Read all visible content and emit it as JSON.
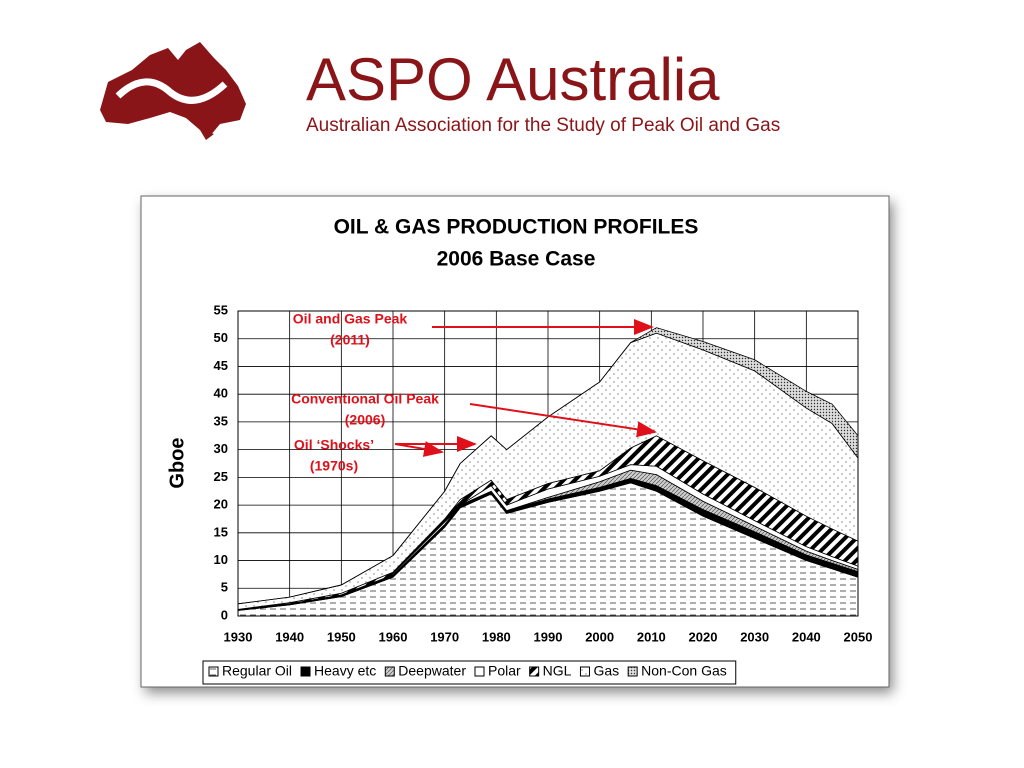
{
  "header": {
    "title": "ASPO Australia",
    "subtitle": "Australian Association for the Study of Peak Oil and Gas"
  },
  "chart_data": {
    "type": "stacked-area",
    "title": "OIL & GAS PRODUCTION PROFILES",
    "subtitle": "2006 Base Case",
    "y_label": "Gboe",
    "x": [
      1930,
      1940,
      1950,
      1960,
      1970,
      1973,
      1979,
      1982,
      1990,
      2000,
      2006,
      2011,
      2020,
      2030,
      2040,
      2045,
      2050
    ],
    "series": [
      {
        "name": "Regular Oil",
        "color": "#ffffff",
        "values": [
          1,
          2,
          3.5,
          7,
          16,
          19.5,
          22,
          18.5,
          20.5,
          22.5,
          24,
          22.5,
          18,
          14,
          10,
          8.5,
          7
        ]
      },
      {
        "name": "Heavy etc",
        "color": "#000000",
        "values": [
          0.1,
          0.2,
          0.3,
          0.4,
          0.5,
          0.5,
          0.5,
          0.5,
          0.6,
          0.7,
          0.8,
          1,
          1.2,
          1.2,
          1,
          1,
          1
        ]
      },
      {
        "name": "Deepwater",
        "color": "#bbbbbb",
        "values": [
          0,
          0,
          0,
          0,
          0,
          0,
          0,
          0,
          0.3,
          1,
          1.5,
          2,
          1.5,
          1,
          0.7,
          0.5,
          0.4
        ]
      },
      {
        "name": "Polar",
        "color": "#ffffff",
        "values": [
          0,
          0,
          0,
          0,
          0,
          0,
          1,
          1,
          1.5,
          1,
          1,
          1.5,
          1.3,
          1,
          0.8,
          0.7,
          0.6
        ]
      },
      {
        "name": "NGL",
        "color": "#000000",
        "values": [
          0.1,
          0.2,
          0.3,
          0.5,
          1,
          1,
          1,
          1,
          1,
          1,
          3,
          5.5,
          6,
          6,
          5.5,
          5,
          4.5
        ]
      },
      {
        "name": "Gas",
        "color": "#ffffff",
        "values": [
          1,
          1,
          1.5,
          3,
          5,
          6.5,
          8,
          9,
          12,
          16,
          19,
          18.5,
          20,
          21,
          19.5,
          19,
          15
        ]
      },
      {
        "name": "Non-Con Gas",
        "color": "#888888",
        "values": [
          0,
          0,
          0,
          0,
          0,
          0,
          0,
          0,
          0,
          0,
          0,
          1,
          1.5,
          2,
          3,
          3.5,
          4
        ]
      }
    ],
    "xlim": [
      1930,
      2050
    ],
    "xticks": [
      1930,
      1940,
      1950,
      1960,
      1970,
      1980,
      1990,
      2000,
      2010,
      2020,
      2030,
      2040,
      2050
    ],
    "ylim": [
      0,
      55
    ],
    "yticks": [
      0,
      5,
      10,
      15,
      20,
      25,
      30,
      35,
      40,
      45,
      50,
      55
    ],
    "grid": true,
    "legend": "bottom",
    "annotations": [
      {
        "lines": [
          "Oil and Gas Peak",
          "(2011)"
        ],
        "color": "#e0101a"
      },
      {
        "lines": [
          "Conventional Oil Peak",
          "(2006)"
        ],
        "color": "#e0101a"
      },
      {
        "lines": [
          "Oil ‘Shocks’",
          "(1970s)"
        ],
        "color": "#e0101a"
      }
    ]
  }
}
